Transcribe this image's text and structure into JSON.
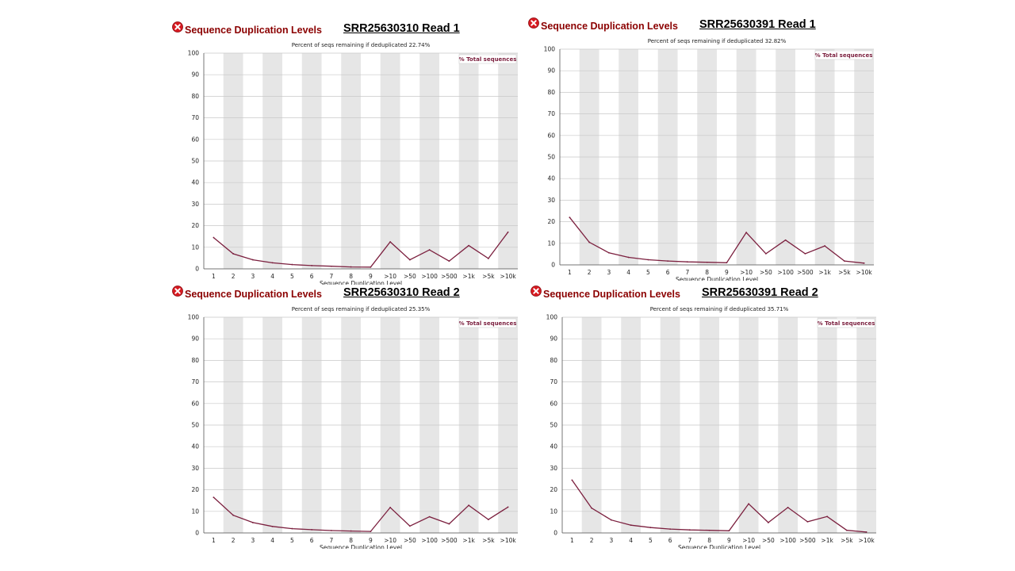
{
  "panels": [
    {
      "module_title": "Sequence Duplication Levels",
      "sample_label": "SRR25630310 Read 1"
    },
    {
      "module_title": "Sequence Duplication Levels",
      "sample_label": "SRR25630391 Read 1"
    },
    {
      "module_title": "Sequence Duplication Levels",
      "sample_label": "SRR25630310 Read 2"
    },
    {
      "module_title": "Sequence Duplication Levels",
      "sample_label": "SRR25630391 Read 2"
    }
  ],
  "colors": {
    "line": "#7b1f3e",
    "band": "#e6e6e6",
    "title": "#8b0000",
    "fail_icon": "#d71920"
  },
  "chart_data": [
    {
      "type": "line",
      "title": "Percent of seqs remaining if deduplicated 22.74%",
      "xlabel": "Sequence Duplication Level",
      "ylabel": "",
      "categories": [
        "1",
        "2",
        "3",
        "4",
        "5",
        "6",
        "7",
        "8",
        "9",
        ">10",
        ">50",
        ">100",
        ">500",
        ">1k",
        ">5k",
        ">10k"
      ],
      "ylim": [
        0,
        100
      ],
      "yticks": [
        "0",
        "10",
        "20",
        "30",
        "40",
        "50",
        "60",
        "70",
        "80",
        "90",
        "100"
      ],
      "grid": true,
      "legend": "top-right",
      "series": [
        {
          "name": "% Total sequences",
          "values": [
            14.5,
            7,
            4.2,
            2.8,
            2.0,
            1.5,
            1.2,
            0.9,
            0.8,
            12.5,
            4.2,
            8.8,
            3.6,
            10.8,
            4.8,
            17
          ]
        }
      ]
    },
    {
      "type": "line",
      "title": "Percent of seqs remaining if deduplicated 32.82%",
      "xlabel": "Sequence Duplication Level",
      "ylabel": "",
      "categories": [
        "1",
        "2",
        "3",
        "4",
        "5",
        "6",
        "7",
        "8",
        "9",
        ">10",
        ">50",
        ">100",
        ">500",
        ">1k",
        ">5k",
        ">10k"
      ],
      "ylim": [
        0,
        100
      ],
      "yticks": [
        "0",
        "10",
        "20",
        "30",
        "40",
        "50",
        "60",
        "70",
        "80",
        "90",
        "100"
      ],
      "grid": true,
      "legend": "top-right",
      "series": [
        {
          "name": "% Total sequences",
          "values": [
            22,
            10.5,
            5.6,
            3.5,
            2.4,
            1.8,
            1.4,
            1.2,
            1.0,
            15,
            5.2,
            11.5,
            5.2,
            8.8,
            1.8,
            0.8
          ]
        }
      ]
    },
    {
      "type": "line",
      "title": "Percent of seqs remaining if deduplicated 25.35%",
      "xlabel": "Sequence Duplication Level",
      "ylabel": "",
      "categories": [
        "1",
        "2",
        "3",
        "4",
        "5",
        "6",
        "7",
        "8",
        "9",
        ">10",
        ">50",
        ">100",
        ">500",
        ">1k",
        ">5k",
        ">10k"
      ],
      "ylim": [
        0,
        100
      ],
      "yticks": [
        "0",
        "10",
        "20",
        "30",
        "40",
        "50",
        "60",
        "70",
        "80",
        "90",
        "100"
      ],
      "grid": true,
      "legend": "top-right",
      "series": [
        {
          "name": "% Total sequences",
          "values": [
            16.5,
            8.2,
            4.8,
            3.0,
            2.0,
            1.5,
            1.1,
            0.9,
            0.7,
            11.8,
            3.2,
            7.5,
            4.2,
            12.8,
            6.2,
            12
          ]
        }
      ]
    },
    {
      "type": "line",
      "title": "Percent of seqs remaining if deduplicated 35.71%",
      "xlabel": "Sequence Duplication Level",
      "ylabel": "",
      "categories": [
        "1",
        "2",
        "3",
        "4",
        "5",
        "6",
        "7",
        "8",
        "9",
        ">10",
        ">50",
        ">100",
        ">500",
        ">1k",
        ">5k",
        ">10k"
      ],
      "ylim": [
        0,
        100
      ],
      "yticks": [
        "0",
        "10",
        "20",
        "30",
        "40",
        "50",
        "60",
        "70",
        "80",
        "90",
        "100"
      ],
      "grid": true,
      "legend": "top-right",
      "series": [
        {
          "name": "% Total sequences",
          "values": [
            24.5,
            11.5,
            6.0,
            3.6,
            2.5,
            1.8,
            1.4,
            1.2,
            1.0,
            13.5,
            4.8,
            11.8,
            5.2,
            7.6,
            1.2,
            0.4
          ]
        }
      ]
    }
  ]
}
